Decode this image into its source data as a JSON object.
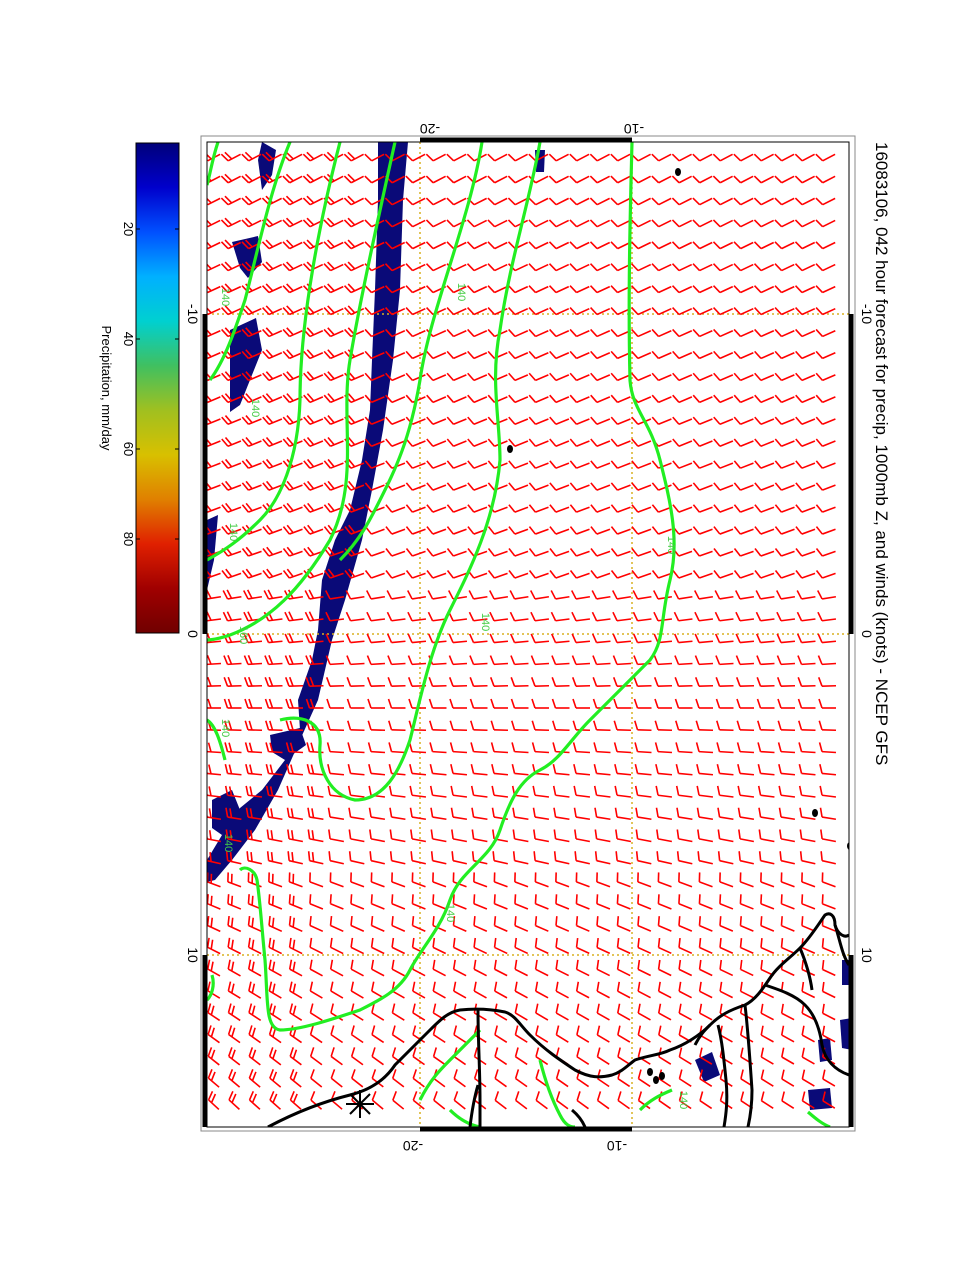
{
  "title": "16083106, 042 hour forecast for precip, 1000mb Z, and winds (knots) - NCEP GFS",
  "colors": {
    "barb": "#ff0000",
    "contour": "#22ee22",
    "contour_label": "#44cc44",
    "precip": "#0a0a78",
    "coast": "#000000",
    "grid": "#d8b020",
    "frame": "#000000"
  },
  "axes": {
    "top_ticks": [
      "-20",
      "-10"
    ],
    "bottom_ticks": [
      "-20",
      "-10"
    ],
    "left_ticks": [
      "-10",
      "0",
      "10"
    ],
    "right_ticks": [
      "-10",
      "0",
      "10"
    ]
  },
  "contour_labels": [
    "140",
    "140",
    "140",
    "160",
    "140",
    "140",
    "140",
    "140",
    "140",
    "140",
    "140"
  ],
  "colorbar": {
    "label": "Precipitation, mm/day",
    "ticks": [
      "20",
      "40",
      "60",
      "80"
    ],
    "scale": [
      "#00007a",
      "#0000cc",
      "#0050ff",
      "#00b0ff",
      "#00d0d0",
      "#40c060",
      "#a0c020",
      "#d8c000",
      "#e08000",
      "#e02000",
      "#a00000",
      "#700000"
    ]
  },
  "symbols": [
    "asterisk-marker"
  ]
}
